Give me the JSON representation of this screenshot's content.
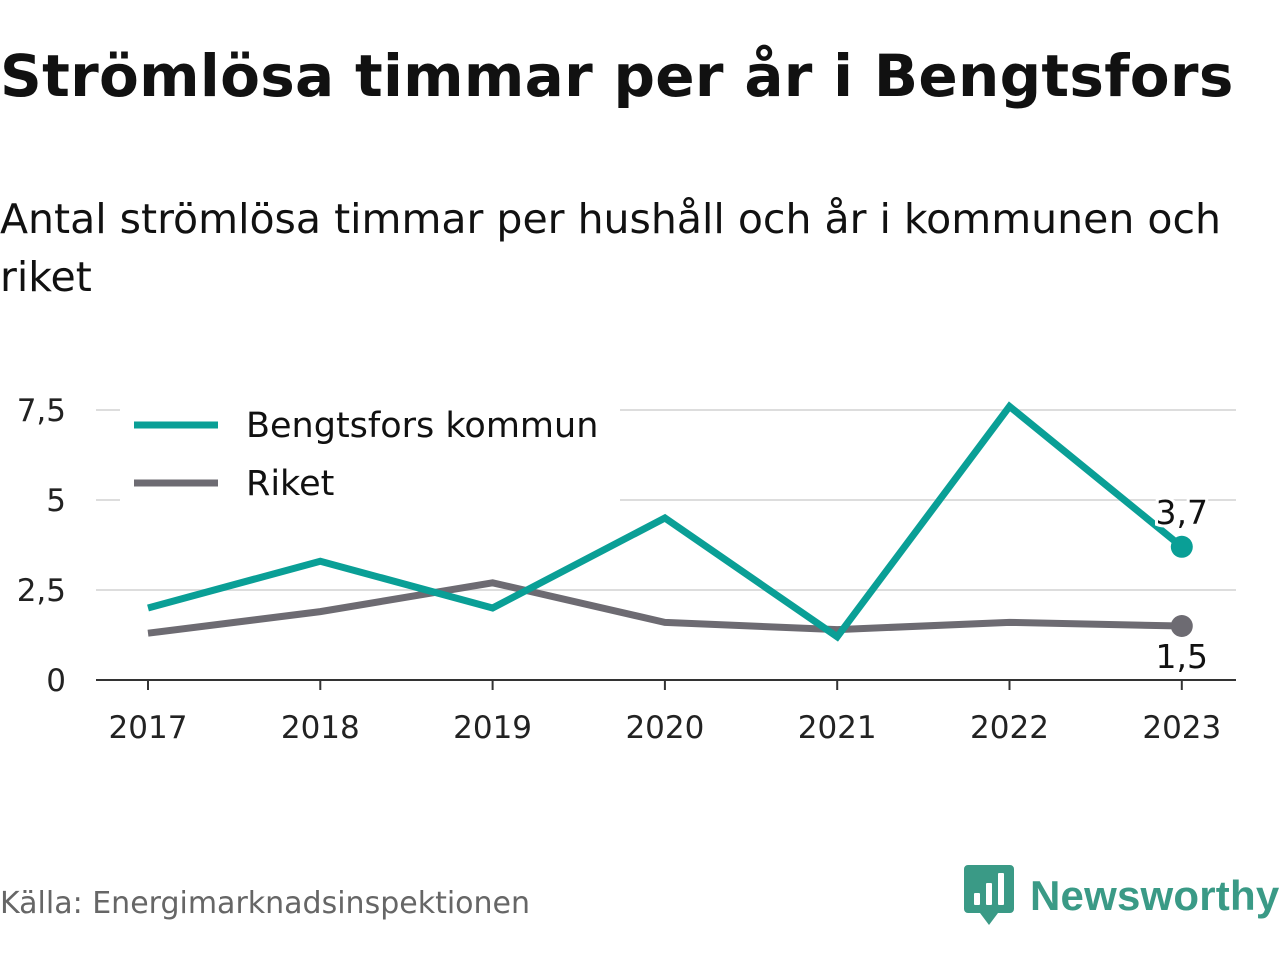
{
  "header": {
    "title": "Strömlösa timmar per år i Bengtsfors",
    "subtitle": "Antal strömlösa timmar per hushåll och år i kommunen och riket"
  },
  "footer": {
    "source": "Källa: Energimarknadsinspektionen",
    "brand": "Newsworthy"
  },
  "colors": {
    "bengtsfors": "#0a9f96",
    "riket": "#6d6b72",
    "grid": "#dddddd",
    "brand": "#3a9a86"
  },
  "chart_data": {
    "type": "line",
    "title": "Strömlösa timmar per år i Bengtsfors",
    "subtitle": "Antal strömlösa timmar per hushåll och år i kommunen och riket",
    "xlabel": "",
    "ylabel": "",
    "categories": [
      "2017",
      "2018",
      "2019",
      "2020",
      "2021",
      "2022",
      "2023"
    ],
    "series": [
      {
        "name": "Bengtsfors kommun",
        "color": "#0a9f96",
        "values": [
          2.0,
          3.3,
          2.0,
          4.5,
          1.2,
          7.6,
          3.7
        ]
      },
      {
        "name": "Riket",
        "color": "#6d6b72",
        "values": [
          1.3,
          1.9,
          2.7,
          1.6,
          1.4,
          1.6,
          1.5
        ]
      }
    ],
    "yticks": [
      {
        "value": 0,
        "label": "0"
      },
      {
        "value": 2.5,
        "label": "2,5"
      },
      {
        "value": 5,
        "label": "5"
      },
      {
        "value": 7.5,
        "label": "7,5"
      }
    ],
    "ylim": [
      0,
      7.5
    ],
    "end_labels": [
      "3,7",
      "1,5"
    ],
    "grid": true,
    "legend": "top-left"
  }
}
